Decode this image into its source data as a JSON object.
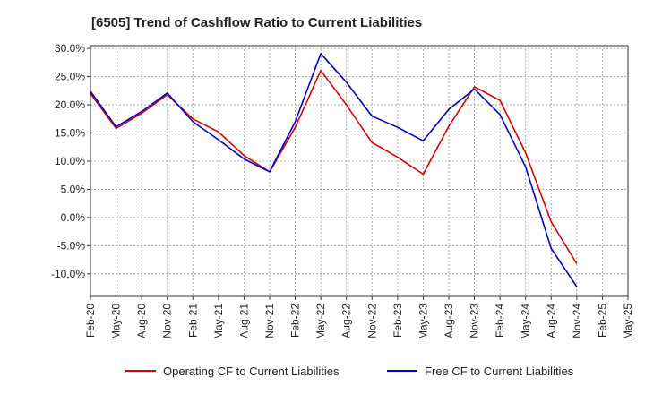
{
  "chart_data": {
    "type": "line",
    "title": "[6505]  Trend of Cashflow Ratio to Current Liabilities",
    "xlabel": "",
    "ylabel": "",
    "x": [
      "Feb-20",
      "May-20",
      "Aug-20",
      "Nov-20",
      "Feb-21",
      "May-21",
      "Aug-21",
      "Nov-21",
      "Feb-22",
      "May-22",
      "Aug-22",
      "Nov-22",
      "Feb-23",
      "May-23",
      "Aug-23",
      "Nov-23",
      "Feb-24",
      "May-24",
      "Aug-24",
      "Nov-24",
      "Feb-25",
      "May-25"
    ],
    "ylim": [
      -14.0,
      30.5
    ],
    "y_ticks": [
      30.0,
      25.0,
      20.0,
      15.0,
      10.0,
      5.0,
      0.0,
      -5.0,
      -10.0
    ],
    "y_tick_labels": [
      "30.0%",
      "25.0%",
      "20.0%",
      "15.0%",
      "10.0%",
      "5.0%",
      "0.0%",
      "-5.0%",
      "-10.0%"
    ],
    "grid": true,
    "legend_position": "bottom",
    "series": [
      {
        "name": "Operating CF to Current Liabilities",
        "color": "#dd0000",
        "values": [
          22.0,
          15.8,
          18.5,
          21.8,
          17.5,
          15.2,
          11.0,
          8.1,
          16.0,
          26.1,
          20.0,
          13.3,
          10.7,
          7.7,
          16.2,
          23.2,
          20.8,
          11.5,
          -0.8,
          -8.2,
          null,
          null
        ]
      },
      {
        "name": "Free CF to Current Liabilities",
        "color": "#0000cc",
        "values": [
          22.4,
          16.1,
          18.8,
          22.1,
          17.0,
          13.8,
          10.4,
          8.1,
          17.0,
          29.1,
          24.0,
          18.0,
          16.0,
          13.6,
          19.2,
          22.8,
          18.3,
          9.0,
          -5.5,
          -12.3,
          null,
          null
        ]
      }
    ]
  }
}
